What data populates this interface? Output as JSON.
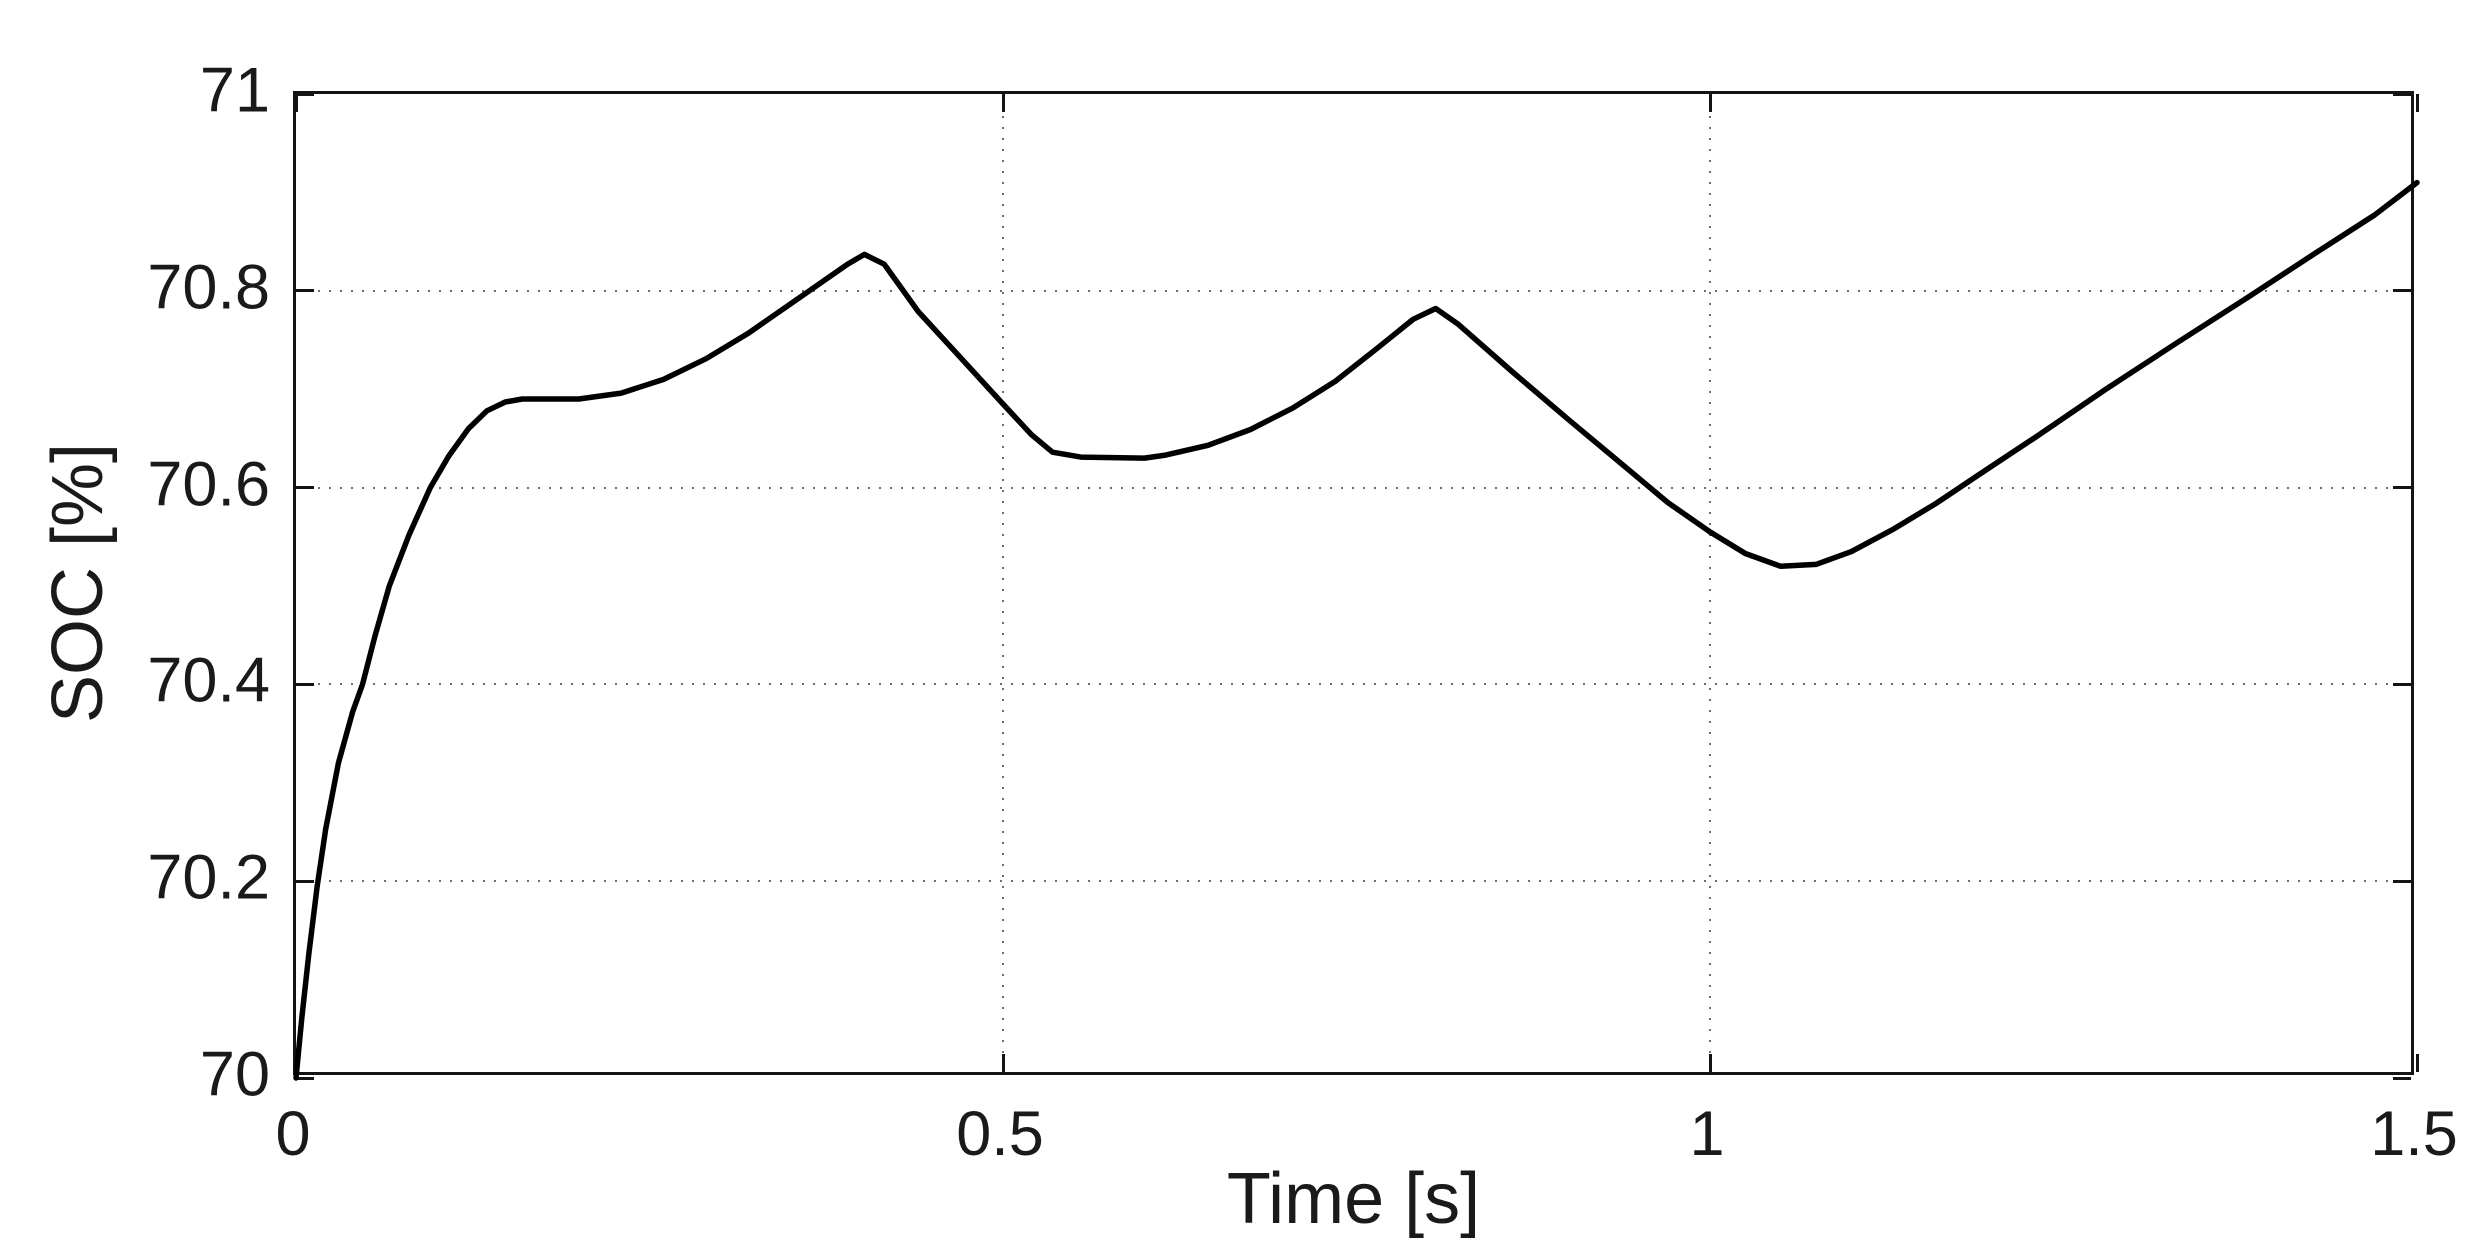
{
  "figure": {
    "background": "#ffffff",
    "axis_color": "#141414",
    "grid_color": "#6e6e6e",
    "text_color": "#1a1a1a"
  },
  "chart_data": {
    "type": "line",
    "title": "",
    "xlabel": "Time [s]",
    "ylabel": "SOC [%]",
    "xlim": [
      0,
      1.5
    ],
    "ylim": [
      70,
      71
    ],
    "grid": true,
    "grid_style": "dotted",
    "legend": "none",
    "x_tick_values": [
      0,
      0.5,
      1,
      1.5
    ],
    "x_tick_labels": [
      "0",
      "0.5",
      "1",
      "1.5"
    ],
    "y_tick_values": [
      70,
      70.2,
      70.4,
      70.6,
      70.8,
      71
    ],
    "y_tick_labels": [
      "70",
      "70.2",
      "70.4",
      "70.6",
      "70.8",
      "71"
    ],
    "series": [
      {
        "name": "SOC",
        "color": "#000000",
        "line_width": 5.5,
        "points": [
          [
            0.0,
            70.0
          ],
          [
            0.004,
            70.06
          ],
          [
            0.009,
            70.125
          ],
          [
            0.015,
            70.195
          ],
          [
            0.021,
            70.253
          ],
          [
            0.03,
            70.32
          ],
          [
            0.04,
            70.372
          ],
          [
            0.047,
            70.4
          ],
          [
            0.056,
            70.45
          ],
          [
            0.066,
            70.5
          ],
          [
            0.08,
            70.552
          ],
          [
            0.095,
            70.6
          ],
          [
            0.108,
            70.632
          ],
          [
            0.122,
            70.66
          ],
          [
            0.135,
            70.678
          ],
          [
            0.148,
            70.687
          ],
          [
            0.16,
            70.69
          ],
          [
            0.2,
            70.69
          ],
          [
            0.23,
            70.696
          ],
          [
            0.26,
            70.71
          ],
          [
            0.29,
            70.731
          ],
          [
            0.32,
            70.757
          ],
          [
            0.35,
            70.787
          ],
          [
            0.375,
            70.812
          ],
          [
            0.39,
            70.827
          ],
          [
            0.402,
            70.837
          ],
          [
            0.416,
            70.827
          ],
          [
            0.44,
            70.779
          ],
          [
            0.47,
            70.732
          ],
          [
            0.5,
            70.685
          ],
          [
            0.52,
            70.654
          ],
          [
            0.535,
            70.636
          ],
          [
            0.555,
            70.631
          ],
          [
            0.6,
            70.63
          ],
          [
            0.615,
            70.633
          ],
          [
            0.645,
            70.643
          ],
          [
            0.675,
            70.659
          ],
          [
            0.705,
            70.681
          ],
          [
            0.735,
            70.708
          ],
          [
            0.765,
            70.742
          ],
          [
            0.79,
            70.771
          ],
          [
            0.806,
            70.782
          ],
          [
            0.822,
            70.766
          ],
          [
            0.86,
            70.718
          ],
          [
            0.9,
            70.669
          ],
          [
            0.94,
            70.621
          ],
          [
            0.97,
            70.585
          ],
          [
            1.0,
            70.555
          ],
          [
            1.025,
            70.533
          ],
          [
            1.05,
            70.52
          ],
          [
            1.075,
            70.522
          ],
          [
            1.1,
            70.535
          ],
          [
            1.13,
            70.558
          ],
          [
            1.16,
            70.584
          ],
          [
            1.19,
            70.613
          ],
          [
            1.23,
            70.651
          ],
          [
            1.28,
            70.7
          ],
          [
            1.33,
            70.747
          ],
          [
            1.38,
            70.793
          ],
          [
            1.43,
            70.84
          ],
          [
            1.47,
            70.877
          ],
          [
            1.5,
            70.91
          ]
        ]
      }
    ]
  }
}
